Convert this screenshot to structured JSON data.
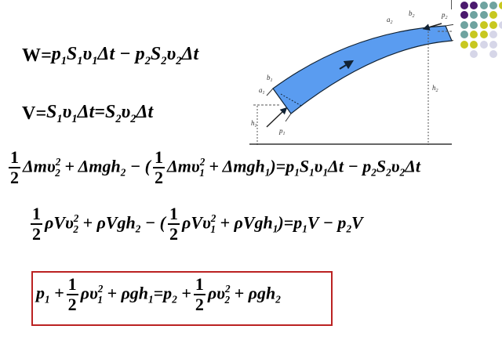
{
  "equations": {
    "eq1": {
      "lhs": "W",
      "rhs_a": "p",
      "rhs_b": "S",
      "rhs_c": "υ",
      "dt": "Δt"
    },
    "eq2": {
      "lhs": "V"
    },
    "one": "1",
    "two": "2"
  },
  "diagram": {
    "labels": {
      "a1": "a",
      "b1": "b",
      "a2": "a",
      "b2": "b",
      "p1": "p",
      "p2": "p",
      "h1": "h",
      "h2": "h",
      "s1": "1",
      "s2": "2"
    }
  },
  "decor": {
    "colors": {
      "purple": "#4b1a6e",
      "teal": "#6fa3a0",
      "yellow": "#c8c820",
      "lavender": "#d6d6e8",
      "box_border": "#bb2222",
      "fluid": "#5a9cf0"
    }
  }
}
